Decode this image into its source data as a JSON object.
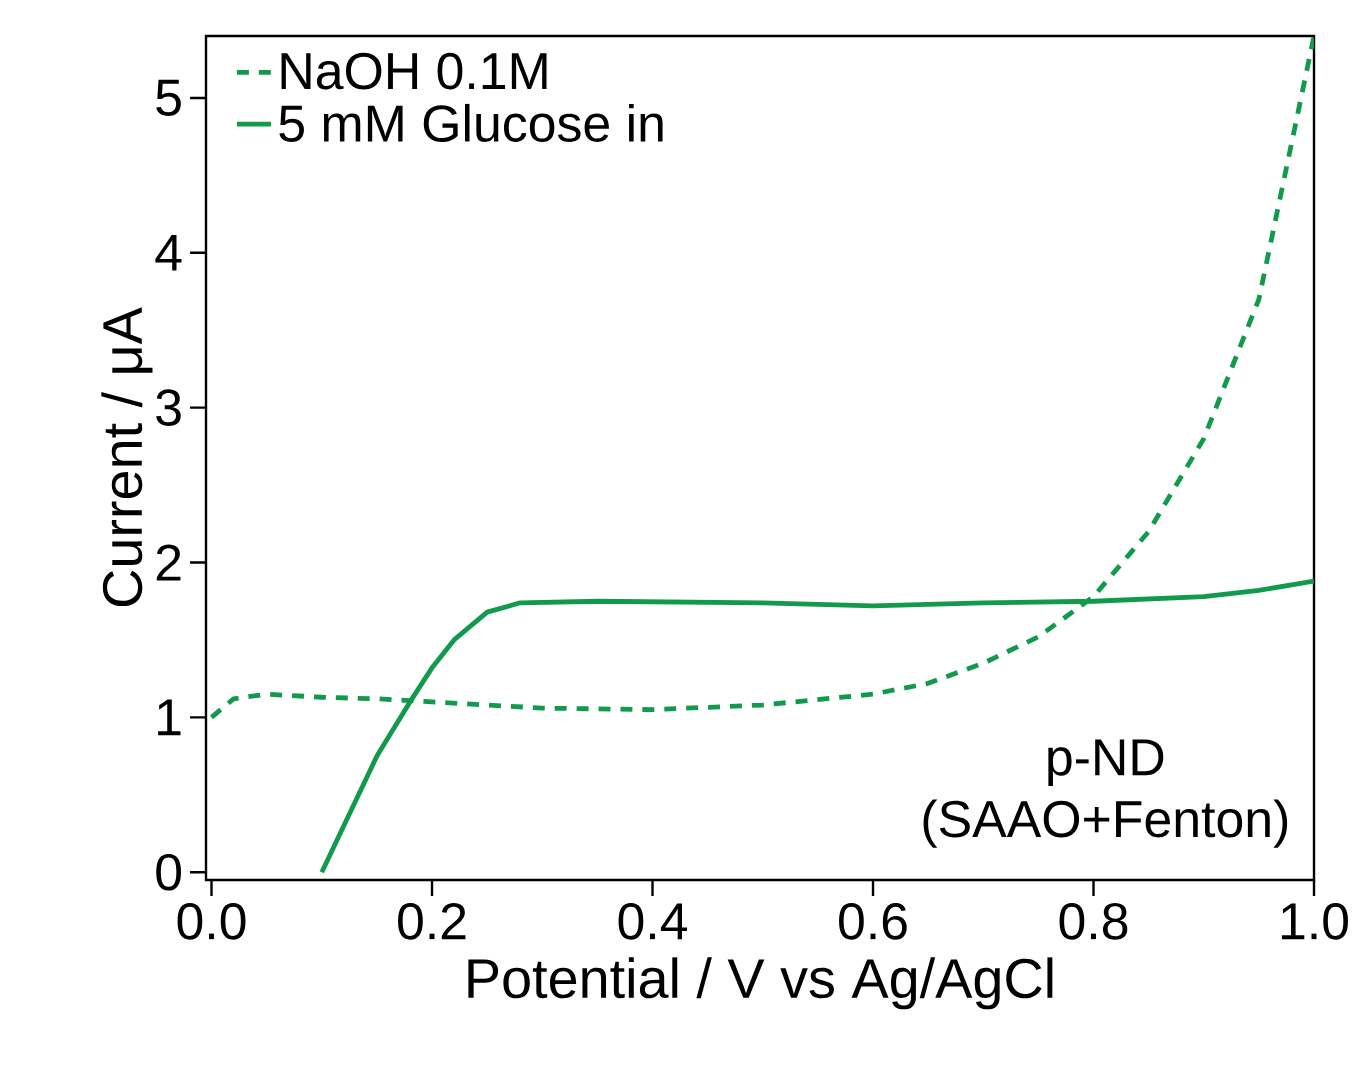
{
  "chart_data": {
    "type": "line",
    "xlabel": "Potential / V vs Ag/AgCl",
    "ylabel": "Current / μA",
    "xlim": [
      -0.005,
      1.0
    ],
    "ylim": [
      -0.05,
      5.4
    ],
    "xticks": [
      "0.0",
      0.2,
      0.4,
      0.6,
      0.8,
      "1.0"
    ],
    "yticks": [
      0,
      1,
      2,
      3,
      4,
      5
    ],
    "grid": false,
    "legend": "top left",
    "annotations": [
      "p-ND",
      "(SAAO+Fenton)"
    ],
    "series": [
      {
        "name": "NaOH 0.1M",
        "color": "#119a4b",
        "line_style": "dashed",
        "x": [
          0,
          0.02,
          0.05,
          0.1,
          0.15,
          0.2,
          0.3,
          0.4,
          0.5,
          0.6,
          0.65,
          0.7,
          0.75,
          0.8,
          0.85,
          0.9,
          0.95,
          1.0
        ],
        "values": [
          1.0,
          1.12,
          1.15,
          1.13,
          1.12,
          1.1,
          1.06,
          1.05,
          1.08,
          1.15,
          1.22,
          1.35,
          1.52,
          1.78,
          2.2,
          2.8,
          3.7,
          5.4
        ]
      },
      {
        "name": "5 mM Glucose in",
        "color": "#119a4b",
        "line_style": "solid",
        "x": [
          0.1,
          0.12,
          0.15,
          0.18,
          0.2,
          0.22,
          0.25,
          0.28,
          0.35,
          0.5,
          0.6,
          0.7,
          0.8,
          0.9,
          0.95,
          1.0
        ],
        "values": [
          0,
          0.3,
          0.75,
          1.1,
          1.32,
          1.5,
          1.68,
          1.74,
          1.75,
          1.74,
          1.72,
          1.74,
          1.75,
          1.78,
          1.82,
          1.88
        ]
      }
    ]
  }
}
